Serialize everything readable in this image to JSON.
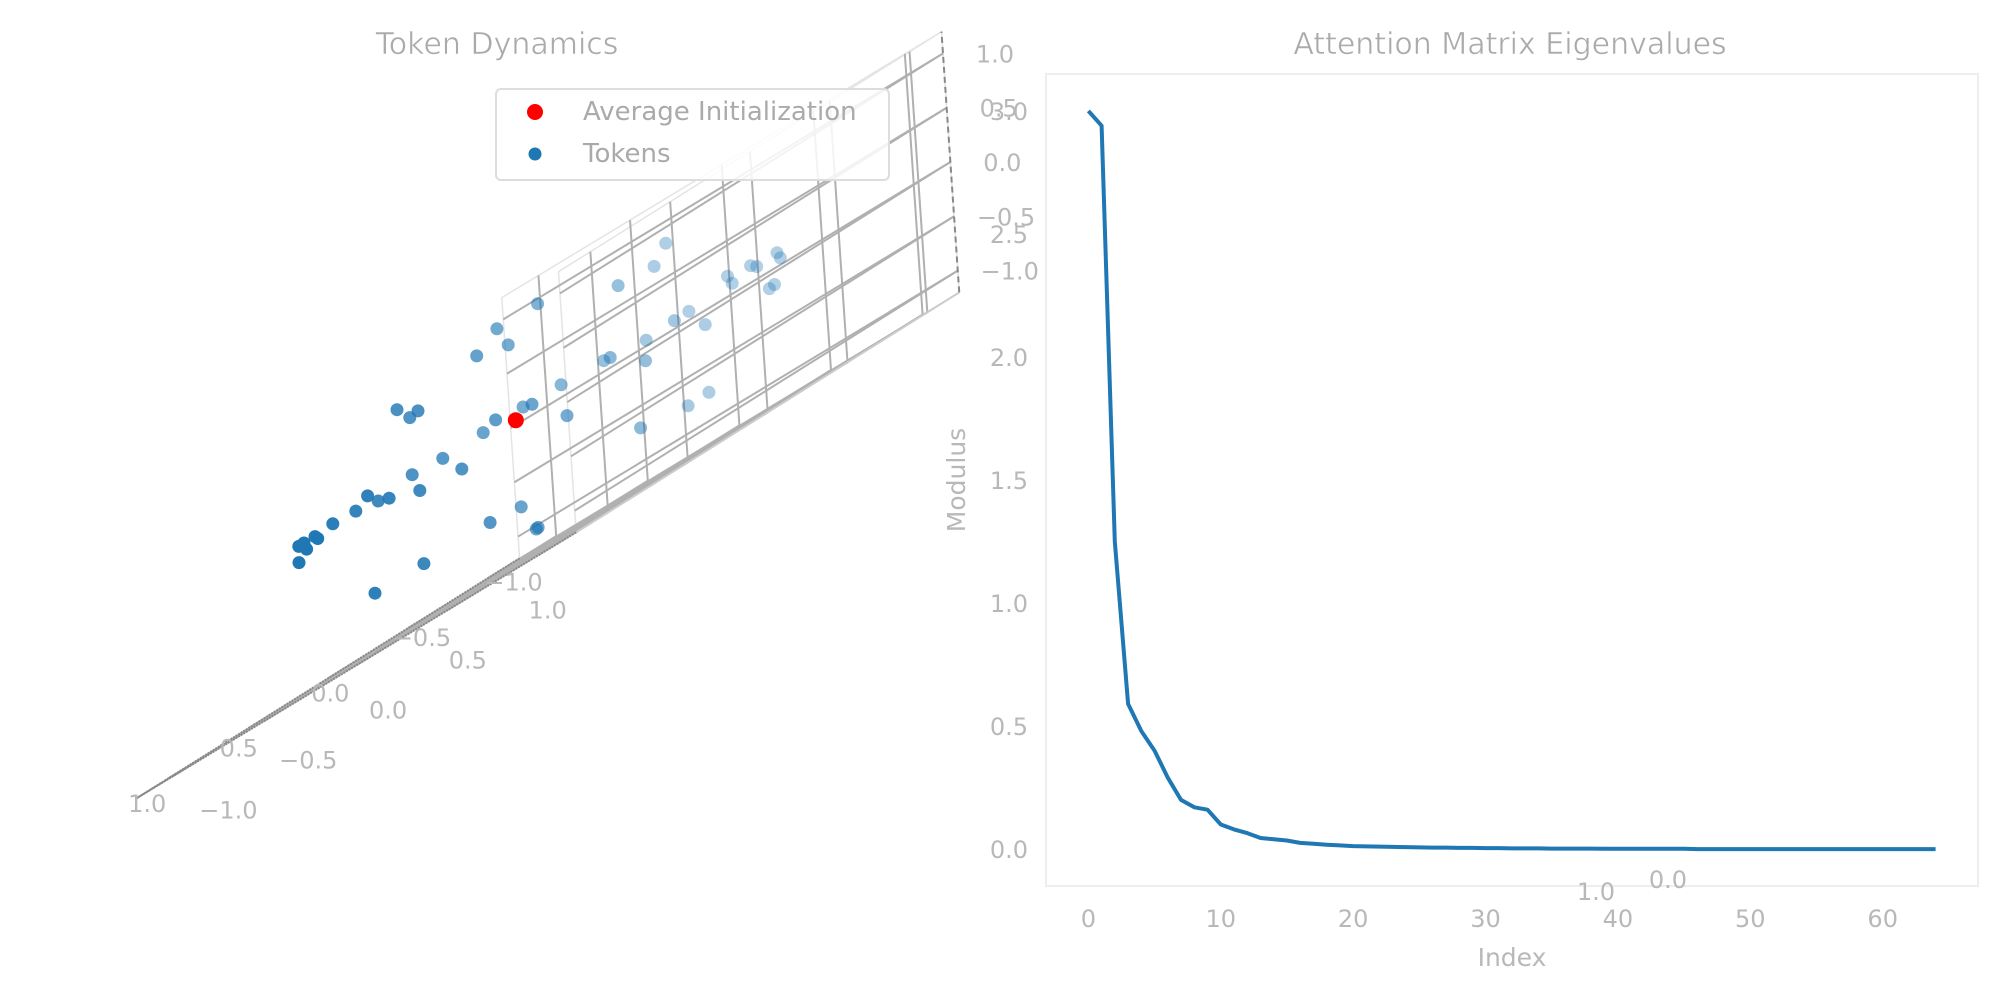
{
  "chart_data": [
    {
      "type": "scatter",
      "projection": "3d",
      "title": "Token Dynamics",
      "xlim": [
        -1.2,
        1.2
      ],
      "ylim": [
        -1.2,
        1.2
      ],
      "zlim": [
        -1.2,
        1.2
      ],
      "x_ticks": [
        "−1.0",
        "−0.5",
        "0.0",
        "0.5",
        "1.0"
      ],
      "y_ticks": [
        "−1.0",
        "−0.5",
        "0.0",
        "0.5",
        "1.0"
      ],
      "z_ticks": [
        "−1.0",
        "−0.5",
        "0.0",
        "0.5",
        "1.0"
      ],
      "grid": true,
      "legend_position": "top-right",
      "series": [
        {
          "name": "Average Initialization",
          "color": "#ff0000",
          "points": [
            [
              0.08,
              -0.05,
              0.08
            ]
          ]
        },
        {
          "name": "Tokens",
          "color": "#1f77b4",
          "points": [
            [
              0.98,
              0.06,
              0.2
            ],
            [
              0.99,
              0.2,
              0.06
            ],
            [
              0.96,
              -0.28,
              0.1
            ],
            [
              0.94,
              0.33,
              -0.04
            ],
            [
              0.9,
              -0.42,
              0.07
            ],
            [
              0.86,
              0.5,
              -0.08
            ],
            [
              0.8,
              -0.58,
              0.14
            ],
            [
              0.77,
              0.62,
              0.17
            ],
            [
              0.7,
              -0.7,
              0.0
            ],
            [
              0.67,
              0.73,
              0.11
            ],
            [
              0.58,
              -0.8,
              0.15
            ],
            [
              0.56,
              0.81,
              -0.18
            ],
            [
              0.45,
              -0.88,
              0.15
            ],
            [
              0.4,
              0.91,
              0.1
            ],
            [
              0.3,
              -0.94,
              0.17
            ],
            [
              0.26,
              0.96,
              -0.12
            ],
            [
              0.14,
              -0.98,
              0.16
            ],
            [
              0.12,
              0.99,
              0.08
            ],
            [
              0.01,
              -0.99,
              0.13
            ],
            [
              -0.04,
              0.99,
              -0.12
            ],
            [
              -0.16,
              -0.97,
              0.18
            ],
            [
              -0.2,
              0.96,
              0.19
            ],
            [
              -0.3,
              -0.94,
              0.16
            ],
            [
              -0.36,
              0.92,
              0.16
            ],
            [
              -0.46,
              -0.87,
              0.17
            ],
            [
              -0.52,
              0.84,
              -0.14
            ],
            [
              -0.6,
              -0.78,
              0.18
            ],
            [
              -0.66,
              0.74,
              0.14
            ],
            [
              -0.72,
              -0.68,
              0.17
            ],
            [
              -0.78,
              0.62,
              0.08
            ],
            [
              -0.83,
              -0.54,
              0.15
            ],
            [
              -0.88,
              0.46,
              -0.12
            ],
            [
              -0.92,
              -0.38,
              0.1
            ],
            [
              -0.95,
              0.28,
              0.14
            ],
            [
              -0.98,
              -0.18,
              0.12
            ],
            [
              -0.99,
              0.08,
              0.13
            ],
            [
              0.02,
              0.06,
              0.99
            ],
            [
              0.12,
              -0.08,
              0.99
            ],
            [
              -0.05,
              -0.12,
              -0.99
            ],
            [
              0.08,
              0.04,
              -0.99
            ],
            [
              0.48,
              0.2,
              0.85
            ],
            [
              -0.42,
              0.35,
              0.83
            ],
            [
              0.35,
              -0.45,
              0.82
            ],
            [
              -0.3,
              -0.5,
              0.8
            ],
            [
              0.6,
              0.35,
              -0.7
            ],
            [
              -0.55,
              0.4,
              -0.72
            ],
            [
              0.4,
              -0.6,
              -0.68
            ],
            [
              -0.38,
              -0.58,
              -0.7
            ],
            [
              0.72,
              0.1,
              0.68
            ],
            [
              -0.7,
              -0.05,
              0.7
            ],
            [
              0.15,
              0.7,
              0.7
            ],
            [
              0.05,
              -0.72,
              0.69
            ],
            [
              0.7,
              0.05,
              -0.7
            ],
            [
              -0.68,
              0.12,
              -0.72
            ],
            [
              0.1,
              0.72,
              -0.68
            ]
          ]
        }
      ]
    },
    {
      "type": "line",
      "title": "Attention Matrix Eigenvalues",
      "xlabel": "Index",
      "ylabel": "Modulus",
      "xlim": [
        -3.2,
        67.2
      ],
      "ylim": [
        -0.15,
        3.15
      ],
      "x_ticks": [
        0,
        10,
        20,
        30,
        40,
        50,
        60
      ],
      "y_ticks": [
        "0.0",
        "0.5",
        "1.0",
        "1.5",
        "2.0",
        "2.5",
        "3.0"
      ],
      "grid": false,
      "series": [
        {
          "color": "#1f77b4",
          "x": [
            0,
            1,
            2,
            3,
            4,
            5,
            6,
            7,
            8,
            9,
            10,
            11,
            12,
            13,
            14,
            15,
            16,
            17,
            18,
            19,
            20,
            21,
            22,
            23,
            24,
            25,
            26,
            27,
            28,
            29,
            30,
            31,
            32,
            33,
            34,
            35,
            36,
            37,
            38,
            39,
            40,
            41,
            42,
            43,
            44,
            45,
            46,
            47,
            48,
            49,
            50,
            51,
            52,
            53,
            54,
            55,
            56,
            57,
            58,
            59,
            60,
            61,
            62,
            63,
            64
          ],
          "values": [
            3.0,
            2.94,
            1.25,
            0.59,
            0.48,
            0.4,
            0.29,
            0.2,
            0.17,
            0.16,
            0.1,
            0.08,
            0.065,
            0.045,
            0.04,
            0.035,
            0.025,
            0.022,
            0.018,
            0.015,
            0.012,
            0.011,
            0.01,
            0.009,
            0.008,
            0.007,
            0.006,
            0.006,
            0.005,
            0.005,
            0.004,
            0.004,
            0.003,
            0.003,
            0.003,
            0.002,
            0.002,
            0.002,
            0.002,
            0.001,
            0.001,
            0.001,
            0.001,
            0.001,
            0.001,
            0.001,
            0.0,
            0.0,
            0.0,
            0.0,
            0.0,
            0.0,
            0.0,
            0.0,
            0.0,
            0.0,
            0.0,
            0.0,
            0.0,
            0.0,
            0.0,
            0.0,
            0.0,
            0.0,
            0.0
          ]
        }
      ],
      "stray_ticks": [
        "1.0",
        "0.0"
      ]
    }
  ]
}
